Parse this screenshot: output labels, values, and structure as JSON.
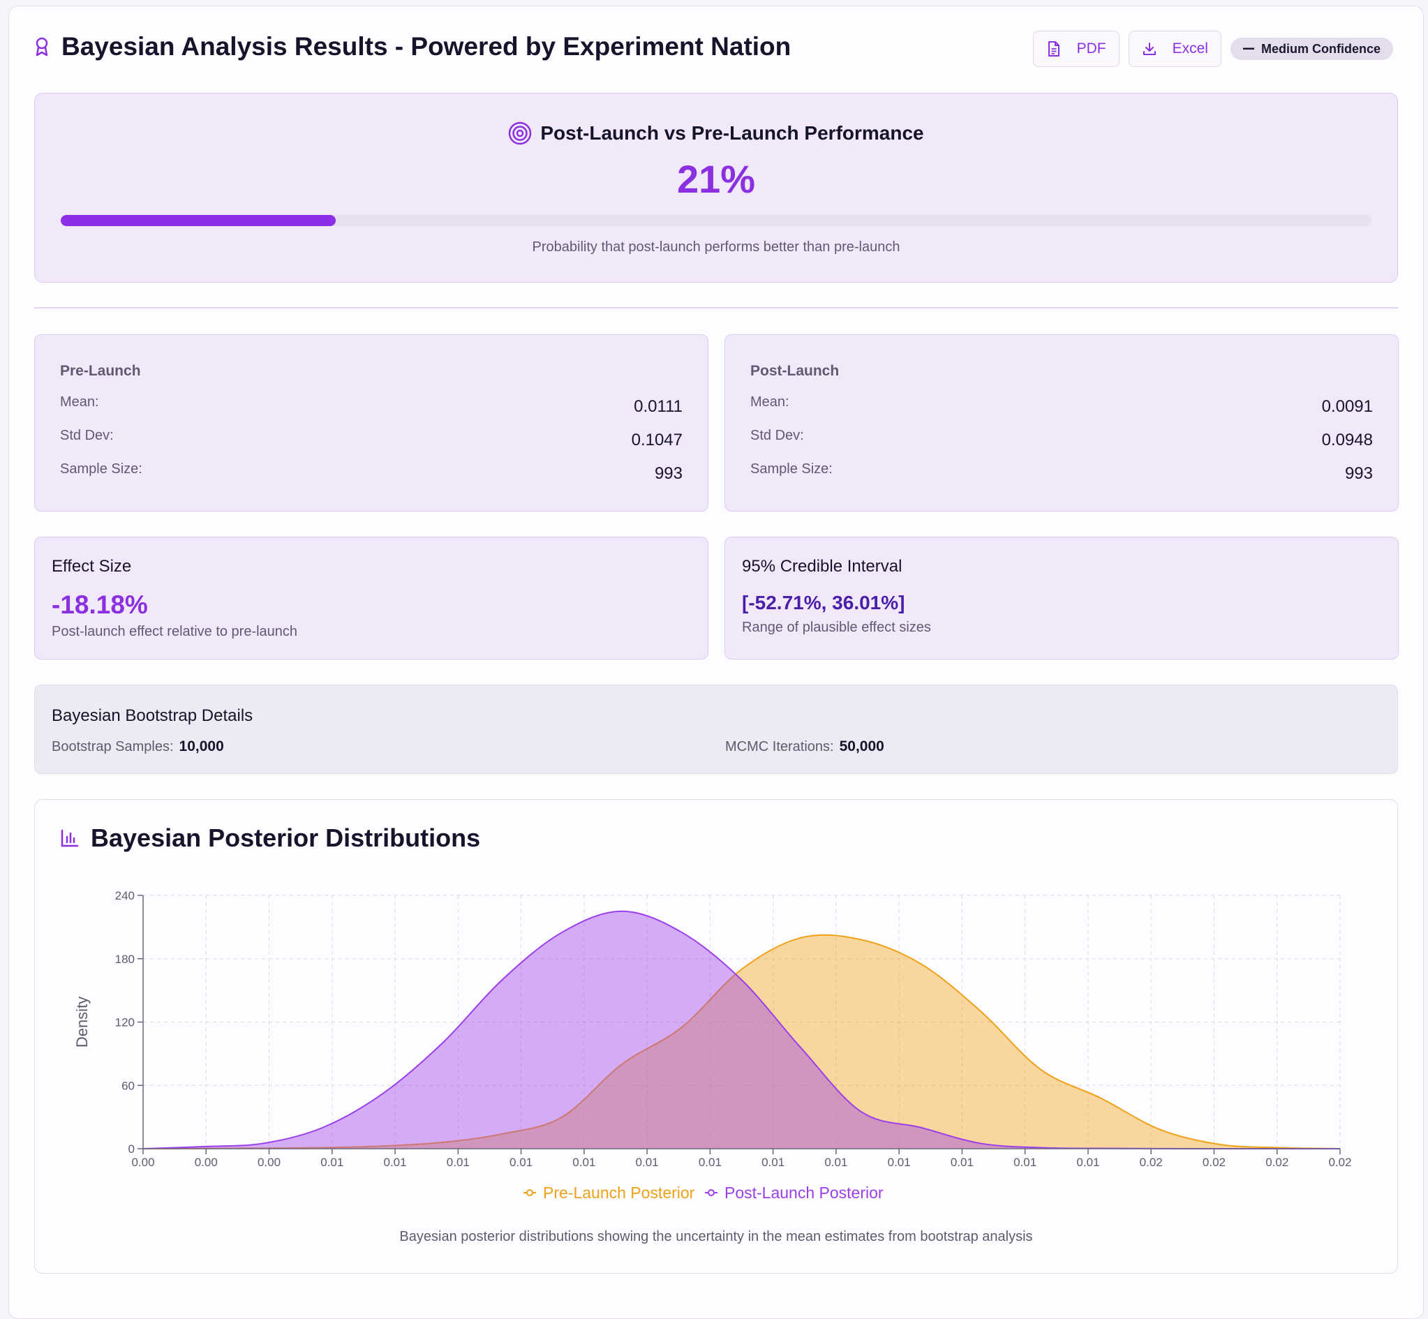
{
  "header": {
    "title": "Bayesian Analysis Results - Powered by Experiment Nation",
    "pdf_label": "PDF",
    "excel_label": "Excel",
    "confidence_badge": "Medium Confidence"
  },
  "probability": {
    "heading": "Post-Launch vs Pre-Launch Performance",
    "value_text": "21%",
    "value": 0.21,
    "caption": "Probability that post-launch performs better than pre-launch"
  },
  "pre_launch": {
    "title": "Pre-Launch",
    "mean_label": "Mean:",
    "mean": "0.0111",
    "std_label": "Std Dev:",
    "std": "0.1047",
    "n_label": "Sample Size:",
    "n": "993"
  },
  "post_launch": {
    "title": "Post-Launch",
    "mean_label": "Mean:",
    "mean": "0.0091",
    "std_label": "Std Dev:",
    "std": "0.0948",
    "n_label": "Sample Size:",
    "n": "993"
  },
  "effect": {
    "title": "Effect Size",
    "value": "-18.18%",
    "desc": "Post-launch effect relative to pre-launch"
  },
  "credible": {
    "title": "95% Credible Interval",
    "value": "[-52.71%, 36.01%]",
    "desc": "Range of plausible effect sizes"
  },
  "bootstrap": {
    "title": "Bayesian Bootstrap Details",
    "samples_label": "Bootstrap Samples:",
    "samples": "10,000",
    "mcmc_label": "MCMC Iterations:",
    "mcmc": "50,000"
  },
  "chart": {
    "title": "Bayesian Posterior Distributions",
    "caption": "Bayesian posterior distributions showing the uncertainty in the mean estimates from bootstrap analysis"
  },
  "colors": {
    "accent": "#8b30e0",
    "pre": "#f0a11a",
    "post": "#9a3fea"
  },
  "chart_data": {
    "type": "area",
    "title": "Bayesian Posterior Distributions",
    "ylabel": "Density",
    "xlabel": "",
    "ylim": [
      0,
      240
    ],
    "yticks": [
      0,
      60,
      120,
      180,
      240
    ],
    "x_tick_labels": [
      "0.00",
      "0.00",
      "0.00",
      "0.01",
      "0.01",
      "0.01",
      "0.01",
      "0.01",
      "0.01",
      "0.01",
      "0.01",
      "0.01",
      "0.01",
      "0.01",
      "0.01",
      "0.01",
      "0.02",
      "0.02",
      "0.02",
      "0.02"
    ],
    "grid": true,
    "legend": "bottom-center",
    "series": [
      {
        "name": "Pre-Launch Posterior",
        "values": [
          0,
          0.2,
          0.5,
          1,
          2.5,
          6,
          14,
          30,
          80,
          115,
          170,
          200,
          198,
          175,
          130,
          75,
          48,
          18,
          4,
          1,
          0
        ]
      },
      {
        "name": "Post-Launch Posterior",
        "values": [
          0,
          2,
          5,
          20,
          52,
          100,
          160,
          205,
          225,
          205,
          160,
          95,
          35,
          20,
          5,
          1,
          0.3,
          0.1,
          0,
          0,
          0
        ]
      }
    ]
  }
}
